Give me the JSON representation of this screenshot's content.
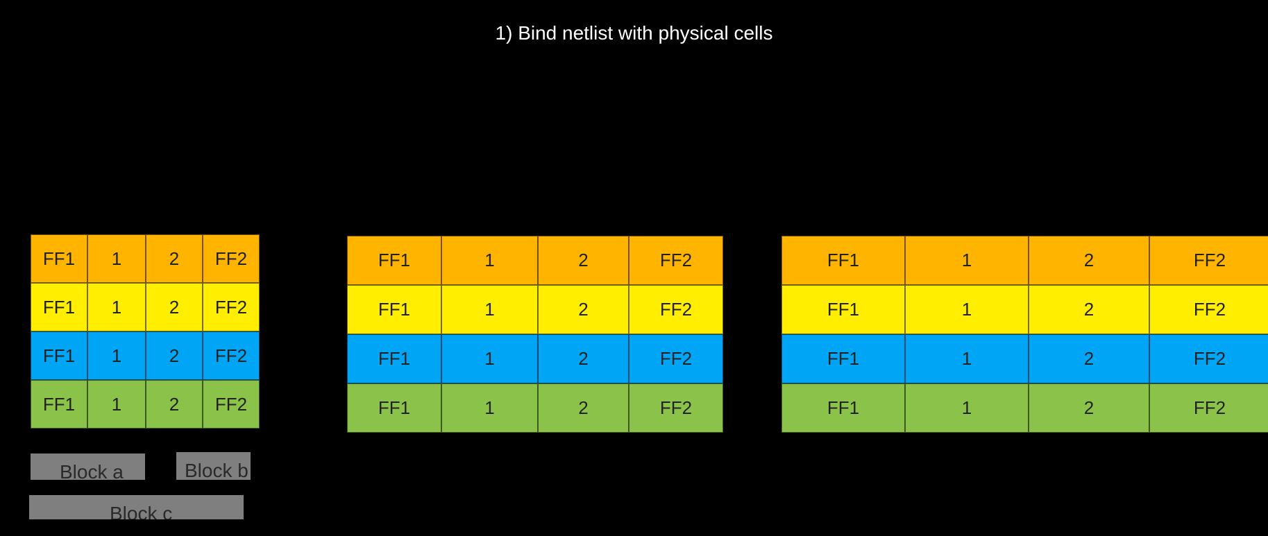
{
  "title": "1) Bind netlist with physical cells",
  "colors": {
    "row_1": "#ffb400",
    "row_2": "#ffee00",
    "row_3": "#00a6f5",
    "row_4": "#8bc34a",
    "block": "#7f7f7f",
    "background": "#000000"
  },
  "rows": [
    {
      "color": "#ffb400",
      "cells": [
        "FF1",
        "1",
        "2",
        "FF2"
      ]
    },
    {
      "color": "#ffee00",
      "cells": [
        "FF1",
        "1",
        "2",
        "FF2"
      ]
    },
    {
      "color": "#00a6f5",
      "cells": [
        "FF1",
        "1",
        "2",
        "FF2"
      ]
    },
    {
      "color": "#8bc34a",
      "cells": [
        "FF1",
        "1",
        "2",
        "FF2"
      ]
    }
  ],
  "blocks": [
    {
      "label": "Block a"
    },
    {
      "label": "Block b"
    },
    {
      "label": "Block c"
    }
  ]
}
